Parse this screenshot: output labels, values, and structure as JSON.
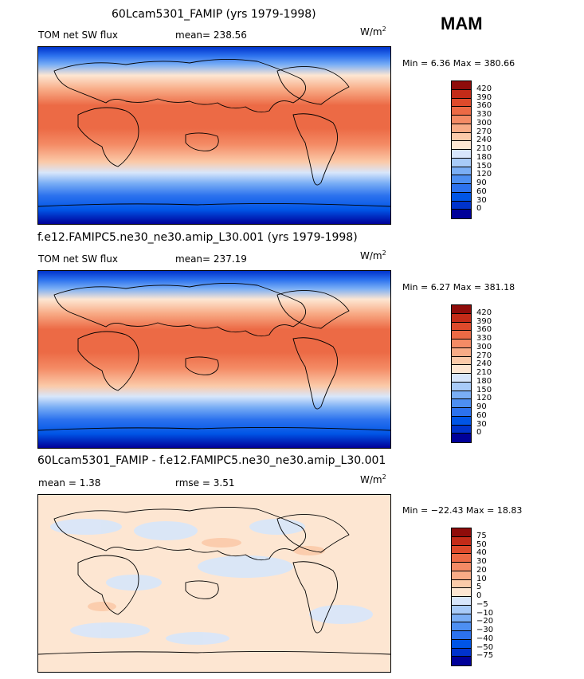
{
  "season": "MAM",
  "units": "W/m",
  "units_exp": "2",
  "palette_abs": [
    "#000099",
    "#0033cc",
    "#0055e6",
    "#2c72ee",
    "#4d8ff2",
    "#7aaef5",
    "#a8cbf8",
    "#d7e6fb",
    "#fde6d2",
    "#fbcaa9",
    "#f8ab86",
    "#f48b65",
    "#ec6a45",
    "#de4a2b",
    "#c32b18",
    "#8f0c0a"
  ],
  "palette_diff": [
    "#000099",
    "#0033cc",
    "#0055e6",
    "#2c72ee",
    "#4d8ff2",
    "#7aaef5",
    "#a8cbf8",
    "#d7e6fb",
    "#fde6d2",
    "#fbcaa9",
    "#f8ab86",
    "#f48b65",
    "#ec6a45",
    "#de4a2b",
    "#c32b18",
    "#8f0c0a"
  ],
  "panels": [
    {
      "title": "60Lcam5301_FAMIP (yrs 1979-1998)",
      "left_label": "TOM net SW flux",
      "stat_label": "mean=",
      "stat_value": "238.56",
      "min_max": "Min =    6.36  Max =  380.66",
      "colorbar_ticks": [
        "420",
        "390",
        "360",
        "330",
        "300",
        "270",
        "240",
        "210",
        "180",
        "150",
        "120",
        "90",
        "60",
        "30",
        "0"
      ]
    },
    {
      "title": "f.e12.FAMIPC5.ne30_ne30.amip_L30.001 (yrs 1979-1998)",
      "left_label": "TOM net SW flux",
      "stat_label": "mean=",
      "stat_value": "237.19",
      "min_max": "Min =    6.27  Max =  381.18",
      "colorbar_ticks": [
        "420",
        "390",
        "360",
        "330",
        "300",
        "270",
        "240",
        "210",
        "180",
        "150",
        "120",
        "90",
        "60",
        "30",
        "0"
      ]
    },
    {
      "title": "60Lcam5301_FAMIP - f.e12.FAMIPC5.ne30_ne30.amip_L30.001",
      "left_label": "mean =    1.38",
      "stat_label": "rmse =",
      "stat_value": "3.51",
      "min_max": "Min = −22.43  Max =   18.83",
      "colorbar_ticks": [
        "75",
        "50",
        "40",
        "30",
        "20",
        "10",
        "5",
        "0",
        "−5",
        "−10",
        "−20",
        "−30",
        "−40",
        "−50",
        "−75"
      ]
    }
  ]
}
